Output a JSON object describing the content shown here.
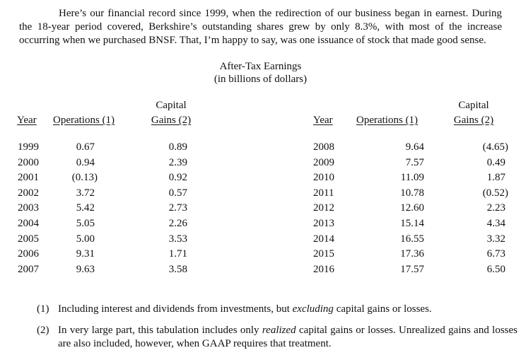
{
  "intro": {
    "before": "Here’s our financial record since 1999, when the redirection of our business began in earnest. During the 18-year period covered, Berkshire’s outstanding shares grew by only 8.3%, with most of the increase occurring when we purchased BNSF. That, I’m happy to say, was one issuance of stock that made good sense."
  },
  "table": {
    "title": "After-Tax Earnings",
    "subtitle": "(in billions of dollars)",
    "headers": {
      "year": "Year",
      "operations": "Operations (1)",
      "capital_top": "Capital",
      "capital_bottom": "Gains (2)"
    },
    "left_rows": [
      {
        "year": "1999",
        "operations": "0.67",
        "capital_gains": "0.89"
      },
      {
        "year": "2000",
        "operations": "0.94",
        "capital_gains": "2.39"
      },
      {
        "year": "2001",
        "operations": "(0.13)",
        "capital_gains": "0.92"
      },
      {
        "year": "2002",
        "operations": "3.72",
        "capital_gains": "0.57"
      },
      {
        "year": "2003",
        "operations": "5.42",
        "capital_gains": "2.73"
      },
      {
        "year": "2004",
        "operations": "5.05",
        "capital_gains": "2.26"
      },
      {
        "year": "2005",
        "operations": "5.00",
        "capital_gains": "3.53"
      },
      {
        "year": "2006",
        "operations": "9.31",
        "capital_gains": "1.71"
      },
      {
        "year": "2007",
        "operations": "9.63",
        "capital_gains": "3.58"
      }
    ],
    "right_rows": [
      {
        "year": "2008",
        "operations": "9.64",
        "capital_gains": "(4.65)"
      },
      {
        "year": "2009",
        "operations": "7.57",
        "capital_gains": "0.49"
      },
      {
        "year": "2010",
        "operations": "11.09",
        "capital_gains": "1.87"
      },
      {
        "year": "2011",
        "operations": "10.78",
        "capital_gains": "(0.52)"
      },
      {
        "year": "2012",
        "operations": "12.60",
        "capital_gains": "2.23"
      },
      {
        "year": "2013",
        "operations": "15.14",
        "capital_gains": "4.34"
      },
      {
        "year": "2014",
        "operations": "16.55",
        "capital_gains": "3.32"
      },
      {
        "year": "2015",
        "operations": "17.36",
        "capital_gains": "6.73"
      },
      {
        "year": "2016",
        "operations": "17.57",
        "capital_gains": "6.50"
      }
    ]
  },
  "notes": [
    {
      "num": "(1)",
      "pre": "Including interest and dividends from investments, but ",
      "em": "excluding",
      "post": " capital gains or losses."
    },
    {
      "num": "(2)",
      "pre": "In very large part, this tabulation includes only ",
      "em": "realized",
      "post": " capital gains or losses. Unrealized gains and losses are also included, however, when GAAP requires that treatment."
    }
  ]
}
